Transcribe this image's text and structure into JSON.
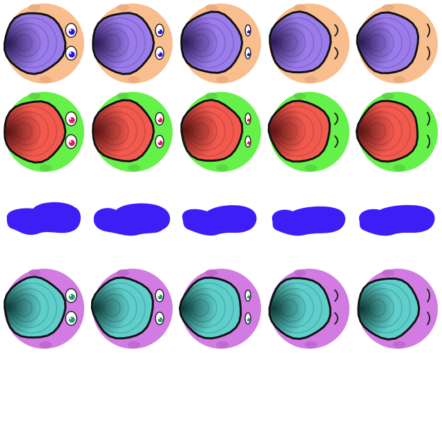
{
  "sprite_sheet": {
    "columns": 5,
    "frames_per_row": 5,
    "rows": [
      {
        "kind": "creature",
        "variant": "orange-purple",
        "colors": {
          "background": "#F9BE8E",
          "background_shadow": "#E9A77E",
          "shell_light": "#9B7CEB",
          "shell_dark": "#2B1A55",
          "outline": "#111111",
          "iris": "#3311DD"
        },
        "eye_states": [
          "open",
          "half-open",
          "narrow",
          "closing",
          "closed"
        ]
      },
      {
        "kind": "creature",
        "variant": "green-red",
        "colors": {
          "background": "#66F14A",
          "background_shadow": "#57D23E",
          "shell_light": "#F35A4E",
          "shell_dark": "#5A1414",
          "outline": "#111111",
          "iris": "#E41A5A"
        },
        "eye_states": [
          "open",
          "half-open",
          "narrow",
          "closing",
          "closed"
        ]
      },
      {
        "kind": "blob",
        "variant": "blue-splat",
        "colors": {
          "fill": "#3D1EF6"
        },
        "eye_states": []
      },
      {
        "kind": "creature",
        "variant": "violet-teal",
        "colors": {
          "background": "#D27BE3",
          "background_shadow": "#BC66CC",
          "shell_light": "#5FCFCB",
          "shell_dark": "#0E3A38",
          "outline": "#111111",
          "iris": "#1F9C6D"
        },
        "eye_states": [
          "open",
          "half-open",
          "narrow",
          "closing",
          "closed"
        ]
      },
      {
        "kind": "empty",
        "variant": "blank",
        "colors": {},
        "eye_states": []
      }
    ]
  }
}
